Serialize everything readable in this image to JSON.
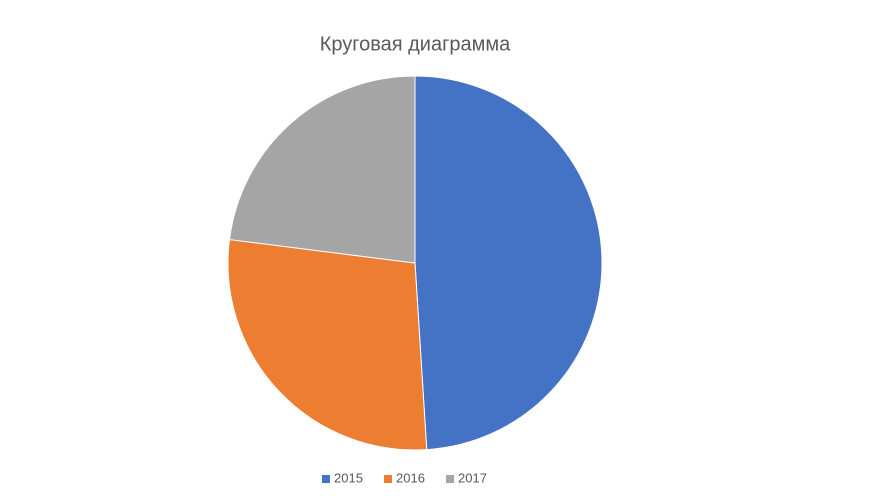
{
  "chart_data": {
    "type": "pie",
    "title": "Круговая диаграмма",
    "categories": [
      "2015",
      "2016",
      "2017"
    ],
    "values": [
      49,
      28,
      23
    ],
    "colors": [
      "#4472c4",
      "#ed7d31",
      "#a5a5a5"
    ],
    "legend": "bottom"
  }
}
